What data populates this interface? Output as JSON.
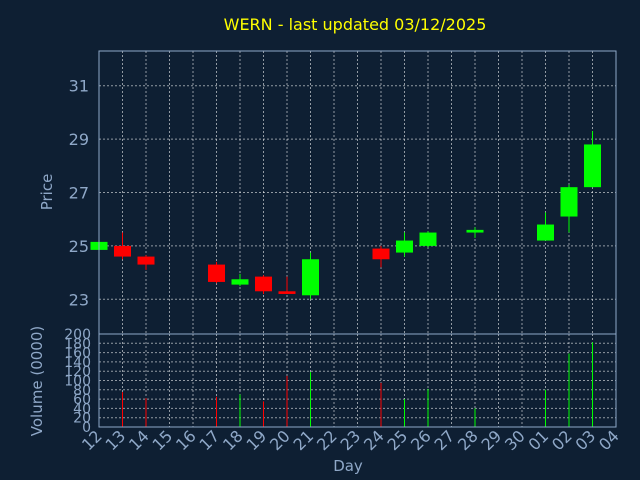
{
  "chart_data": {
    "type": "candlestick",
    "title": "WERN - last updated 03/12/2025",
    "price_axis": {
      "label": "Price",
      "ticks": [
        23,
        25,
        27,
        29,
        31
      ],
      "ylim": [
        21.7,
        32.3
      ]
    },
    "volume_axis": {
      "label": "Volume (0000)",
      "ticks": [
        0,
        20,
        40,
        60,
        80,
        100,
        120,
        140,
        160,
        180,
        200
      ],
      "ylim": [
        0,
        200
      ]
    },
    "xlabel": "Day",
    "x_ticks": [
      "12",
      "13",
      "14",
      "15",
      "16",
      "17",
      "18",
      "19",
      "20",
      "21",
      "22",
      "23",
      "24",
      "25",
      "26",
      "27",
      "28",
      "29",
      "30",
      "01",
      "02",
      "03",
      "04"
    ],
    "up_color": "#00ff00",
    "down_color": "#ff0000",
    "background": "#0e1f33",
    "grid": true,
    "candles": [
      {
        "day": "12",
        "open": 24.85,
        "high": 25.2,
        "low": 24.8,
        "close": 25.15,
        "volume": 0
      },
      {
        "day": "13",
        "open": 25.0,
        "high": 25.5,
        "low": 24.5,
        "close": 24.6,
        "volume": 75
      },
      {
        "day": "14",
        "open": 24.6,
        "high": 24.65,
        "low": 24.1,
        "close": 24.3,
        "volume": 62
      },
      {
        "day": "17",
        "open": 24.3,
        "high": 24.4,
        "low": 23.6,
        "close": 23.65,
        "volume": 65
      },
      {
        "day": "18",
        "open": 23.55,
        "high": 23.95,
        "low": 23.5,
        "close": 23.75,
        "volume": 70
      },
      {
        "day": "19",
        "open": 23.85,
        "high": 23.9,
        "low": 23.2,
        "close": 23.3,
        "volume": 55
      },
      {
        "day": "20",
        "open": 23.3,
        "high": 23.85,
        "low": 23.2,
        "close": 23.2,
        "volume": 110
      },
      {
        "day": "21",
        "open": 23.15,
        "high": 24.75,
        "low": 23.0,
        "close": 24.5,
        "volume": 118
      },
      {
        "day": "24",
        "open": 24.9,
        "high": 25.0,
        "low": 24.2,
        "close": 24.5,
        "volume": 95
      },
      {
        "day": "25",
        "open": 24.75,
        "high": 25.5,
        "low": 24.6,
        "close": 25.2,
        "volume": 60
      },
      {
        "day": "26",
        "open": 25.0,
        "high": 25.55,
        "low": 24.95,
        "close": 25.5,
        "volume": 82
      },
      {
        "day": "28",
        "open": 25.5,
        "high": 25.7,
        "low": 25.3,
        "close": 25.6,
        "volume": 40
      },
      {
        "day": "01",
        "open": 25.2,
        "high": 26.25,
        "low": 25.2,
        "close": 25.8,
        "volume": 80
      },
      {
        "day": "02",
        "open": 26.1,
        "high": 27.3,
        "low": 25.5,
        "close": 27.2,
        "volume": 158
      },
      {
        "day": "03",
        "open": 27.2,
        "high": 29.3,
        "low": 27.2,
        "close": 28.8,
        "volume": 182
      }
    ]
  }
}
